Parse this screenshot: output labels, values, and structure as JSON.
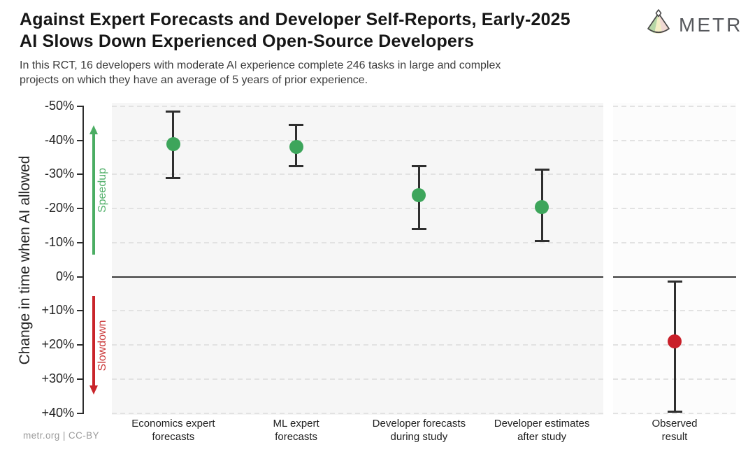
{
  "header": {
    "title_line1": "Against Expert Forecasts and Developer Self-Reports, Early-2025",
    "title_line2": "AI Slows Down Experienced Open-Source Developers",
    "subtitle_line1": "In this RCT, 16 developers with moderate AI experience complete 246 tasks in large and complex",
    "subtitle_line2": "projects on which they have an average of 5 years of prior experience.",
    "logo_text": "METR"
  },
  "footer": {
    "credit": "metr.org  |  CC-BY"
  },
  "colors": {
    "speedup_green": "#3da55b",
    "slowdown_red": "#c9202a",
    "arrow_green": "#4bad63",
    "arrow_red": "#c9252b",
    "label_green": "#55b16d",
    "label_red": "#cb3a3a",
    "whisker": "#2f2f2f",
    "zero_line": "#3b3b3b",
    "panel_main_bg": "#f6f6f6",
    "panel_observed_bg": "#fcfcfc"
  },
  "chart_data": {
    "type": "scatter",
    "title": "Against Expert Forecasts and Developer Self-Reports, Early-2025 AI Slows Down Experienced Open-Source Developers",
    "ylabel": "Change in time when AI allowed",
    "ylim": [
      -50,
      40
    ],
    "grid": true,
    "yticks": [
      "-50%",
      "-40%",
      "-30%",
      "-20%",
      "-10%",
      "0%",
      "+10%",
      "+20%",
      "+30%",
      "+40%"
    ],
    "ytick_values": [
      -50,
      -40,
      -30,
      -20,
      -10,
      0,
      10,
      20,
      30,
      40
    ],
    "annotations": {
      "speedup": {
        "label": "Speedup",
        "direction": "up",
        "from_value": -6.5,
        "to_value": -44.5
      },
      "slowdown": {
        "label": "Slowdown",
        "direction": "down",
        "from_value": 5.7,
        "to_value": 34.6
      }
    },
    "points": [
      {
        "id": "economics-expert-forecasts",
        "label_line1": "Economics expert",
        "label_line2": "forecasts",
        "value": -39,
        "ci": [
          -48.5,
          -29
        ],
        "color": "#3da55b",
        "panel": "main"
      },
      {
        "id": "ml-expert-forecasts",
        "label_line1": "ML expert",
        "label_line2": "forecasts",
        "value": -38,
        "ci": [
          -44.5,
          -32.5
        ],
        "color": "#3da55b",
        "panel": "main"
      },
      {
        "id": "developer-forecasts-during-study",
        "label_line1": "Developer forecasts",
        "label_line2": "during study",
        "value": -24,
        "ci": [
          -32.5,
          -14
        ],
        "color": "#3da55b",
        "panel": "main"
      },
      {
        "id": "developer-estimates-after-study",
        "label_line1": "Developer estimates",
        "label_line2": "after study",
        "value": -20.5,
        "ci": [
          -31.5,
          -10.5
        ],
        "color": "#3da55b",
        "panel": "main"
      },
      {
        "id": "observed-result",
        "label_line1": "Observed",
        "label_line2": "result",
        "value": 19,
        "ci": [
          1.5,
          39.5
        ],
        "color": "#c9202a",
        "panel": "observed"
      }
    ]
  }
}
